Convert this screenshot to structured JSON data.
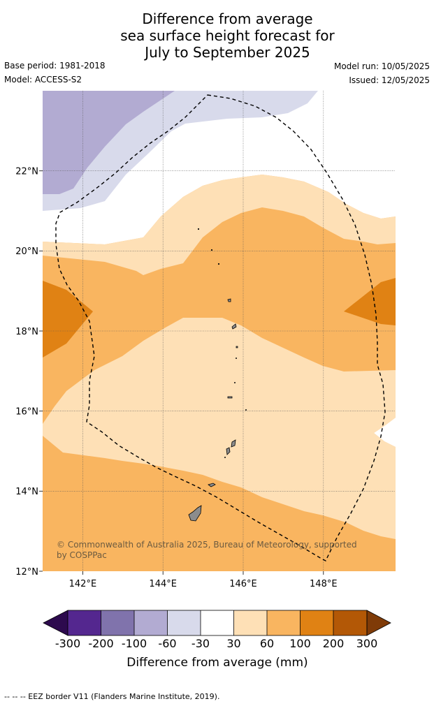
{
  "title": {
    "line1": "Difference from average",
    "line2": "sea surface height forecast for",
    "line3": "July to September 2025"
  },
  "meta": {
    "base_period": "Base period: 1981-2018",
    "model": "Model: ACCESS-S2",
    "model_run": "Model run: 10/05/2025",
    "issued": "Issued: 12/05/2025"
  },
  "map": {
    "lon_labels": [
      "142°E",
      "144°E",
      "146°E",
      "148°E"
    ],
    "lat_labels": [
      "22°N",
      "20°N",
      "18°N",
      "16°N",
      "14°N",
      "12°N"
    ],
    "lon_range": [
      141,
      149.8
    ],
    "lat_range": [
      12,
      24
    ],
    "copyright_line1": "© Commonwealth of Australia 2025, Bureau of Meteorology, supported",
    "copyright_line2": "by COSPPac"
  },
  "colorbar": {
    "title": "Difference from average (mm)",
    "ticks": [
      "-300",
      "-200",
      "-100",
      "-60",
      "-30",
      "30",
      "60",
      "100",
      "200",
      "300"
    ],
    "colors": {
      "lt_neg300": "#2d0a4e",
      "neg300_neg200": "#54278f",
      "neg200_neg100": "#8073ac",
      "neg100_neg60": "#b2abd2",
      "neg60_neg30": "#d8daeb",
      "neg30_30": "#ffffff",
      "p30_60": "#fee0b6",
      "p60_100": "#f9b560",
      "p100_200": "#e08214",
      "p200_300": "#b35806",
      "gt_300": "#7f3b08"
    }
  },
  "footer": {
    "legend_text": "--  --  -- EEZ border V11 (Flanders Marine Institute, 2019)."
  }
}
